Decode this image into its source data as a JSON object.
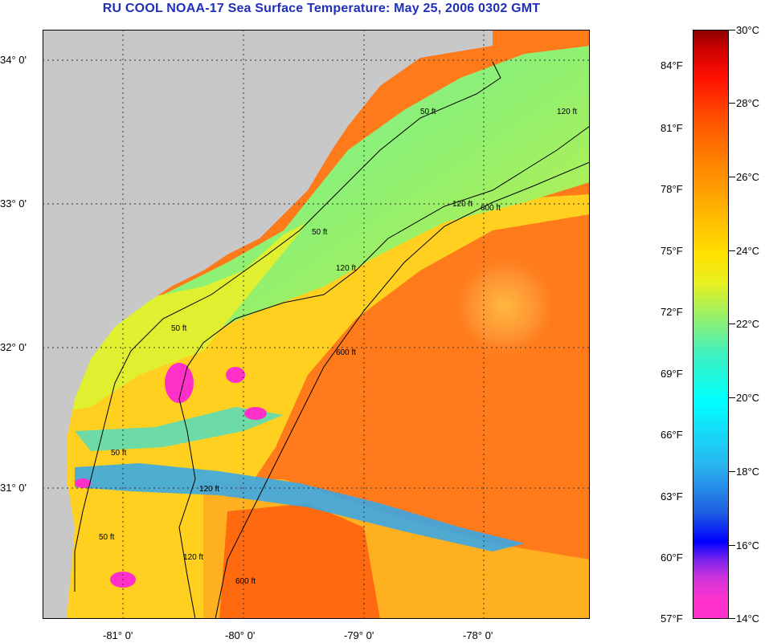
{
  "title": "RU COOL  NOAA-17  Sea Surface Temperature:  May 25, 2006 0302 GMT",
  "map": {
    "lat_labels": [
      "34° 0'",
      "33° 0'",
      "32° 0'",
      "31° 0'"
    ],
    "lon_labels": [
      "-81° 0'",
      "-80° 0'",
      "-79° 0'",
      "-78° 0'"
    ],
    "isobath_labels": [
      "50 ft",
      "50 ft",
      "50 ft",
      "50 ft",
      "50 ft",
      "120 ft",
      "120 ft",
      "120 ft",
      "120 ft",
      "120 ft",
      "600 ft",
      "600 ft",
      "600 ft"
    ]
  },
  "colorbar": {
    "fahrenheit": [
      "84°F",
      "81°F",
      "78°F",
      "75°F",
      "72°F",
      "69°F",
      "66°F",
      "63°F",
      "60°F",
      "57°F"
    ],
    "celsius": [
      "30°C",
      "28°C",
      "26°C",
      "24°C",
      "22°C",
      "20°C",
      "18°C",
      "16°C",
      "14°C"
    ]
  },
  "colors": {
    "land": "#c8c8c8",
    "gulf_stream": "#ff7a1a",
    "shelf": "#70f080",
    "title": "#1f2fb8"
  }
}
